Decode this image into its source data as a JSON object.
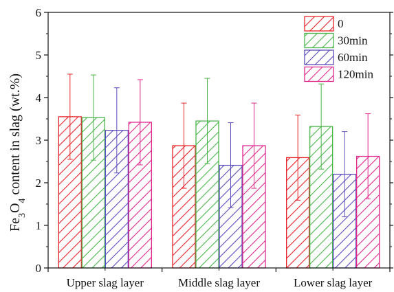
{
  "chart_data": {
    "type": "bar",
    "title": "",
    "xlabel": "",
    "ylabel": {
      "parts": [
        {
          "text": "Fe",
          "sub": false
        },
        {
          "text": "3",
          "sub": true
        },
        {
          "text": "O",
          "sub": false
        },
        {
          "text": "4",
          "sub": true
        },
        {
          "text": " content in slag (wt.%)",
          "sub": false
        }
      ]
    },
    "categories": [
      "Upper slag layer",
      "Middle slag layer",
      "Lower slag layer"
    ],
    "ylim": [
      0,
      6
    ],
    "yticks": [
      0,
      1,
      2,
      3,
      4,
      5,
      6
    ],
    "grid": false,
    "legend_position": "top-right",
    "bar_fill": "hatched",
    "series": [
      {
        "name": "0",
        "color": "#e8232a",
        "values": [
          3.55,
          2.87,
          2.59
        ],
        "errors": [
          1.0,
          1.0,
          1.0
        ]
      },
      {
        "name": "30min",
        "color": "#4ab54a",
        "values": [
          3.53,
          3.45,
          3.32
        ],
        "errors": [
          1.0,
          1.0,
          1.0
        ]
      },
      {
        "name": "60min",
        "color": "#5a4bbd",
        "values": [
          3.23,
          2.41,
          2.2
        ],
        "errors": [
          1.0,
          1.0,
          1.0
        ]
      },
      {
        "name": "120min",
        "color": "#e0258c",
        "values": [
          3.42,
          2.87,
          2.62
        ],
        "errors": [
          1.0,
          1.0,
          1.0
        ]
      }
    ]
  }
}
